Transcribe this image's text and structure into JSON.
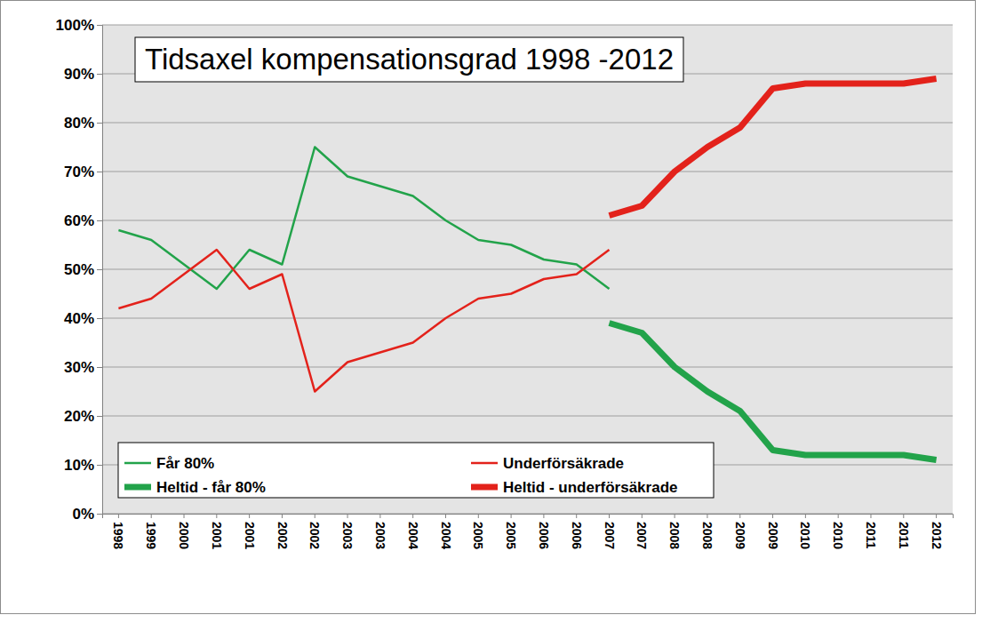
{
  "chart_data": {
    "type": "line",
    "title": "Tidsaxel kompensationsgrad 1998 -2012",
    "categories": [
      "1998",
      "1999",
      "2000",
      "2001",
      "2001",
      "2002",
      "2002",
      "2003",
      "2003",
      "2004",
      "2004",
      "2005",
      "2005",
      "2006",
      "2006",
      "2007",
      "2007",
      "2008",
      "2008",
      "2009",
      "2009",
      "2010",
      "2010",
      "2011",
      "2011",
      "2012"
    ],
    "series": [
      {
        "name": "Får 80%",
        "color": "#22a34a",
        "values": [
          58,
          56,
          51,
          46,
          54,
          51,
          75,
          69,
          67,
          65,
          60,
          56,
          55,
          52,
          51,
          46,
          null,
          null,
          null,
          null,
          null,
          null,
          null,
          null,
          null,
          null
        ]
      },
      {
        "name": "Underförsäkrade",
        "color": "#e3221b",
        "values": [
          42,
          44,
          49,
          54,
          46,
          49,
          25,
          31,
          33,
          35,
          40,
          44,
          45,
          48,
          49,
          54,
          null,
          null,
          null,
          null,
          null,
          null,
          null,
          null,
          null,
          null
        ]
      },
      {
        "name": "Heltid - får 80%",
        "color": "#22a34a",
        "values": [
          null,
          null,
          null,
          null,
          null,
          null,
          null,
          null,
          null,
          null,
          null,
          null,
          null,
          null,
          null,
          39,
          37,
          30,
          25,
          21,
          13,
          12,
          12,
          12,
          12,
          11
        ]
      },
      {
        "name": "Heltid - underförsäkrade",
        "color": "#e3221b",
        "values": [
          null,
          null,
          null,
          null,
          null,
          null,
          null,
          null,
          null,
          null,
          null,
          null,
          null,
          null,
          null,
          61,
          63,
          70,
          75,
          79,
          87,
          88,
          88,
          88,
          88,
          89
        ]
      }
    ],
    "ylim": [
      0,
      100
    ],
    "yticks": [
      {
        "value": 0,
        "label": "0%"
      },
      {
        "value": 10,
        "label": "10%"
      },
      {
        "value": 20,
        "label": "20%"
      },
      {
        "value": 30,
        "label": "30%"
      },
      {
        "value": 40,
        "label": "40%"
      },
      {
        "value": 50,
        "label": "50%"
      },
      {
        "value": 60,
        "label": "60%"
      },
      {
        "value": 70,
        "label": "70%"
      },
      {
        "value": 80,
        "label": "80%"
      },
      {
        "value": 90,
        "label": "90%"
      },
      {
        "value": 100,
        "label": "100%"
      }
    ],
    "grid": true,
    "legend": "bottom"
  }
}
